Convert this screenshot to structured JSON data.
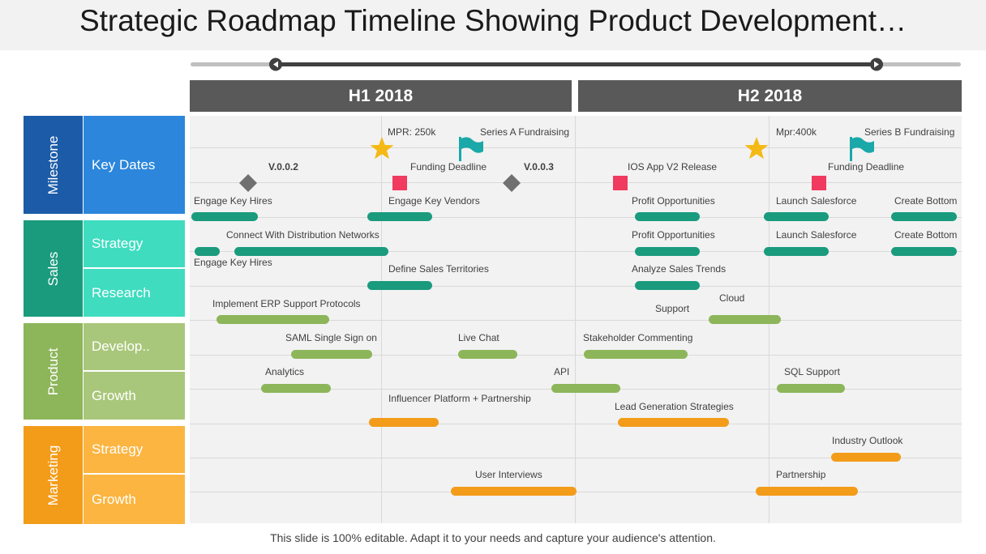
{
  "title": "Strategic Roadmap Timeline Showing Product Development…",
  "footer": "This slide is 100% editable. Adapt it to your needs and capture your audience's attention.",
  "halves": [
    "H1 2018",
    "H2 2018"
  ],
  "categories": [
    {
      "label": "Milestone",
      "color": "#1b5ba8",
      "subs": [
        {
          "label": "Key Dates",
          "color": "#2b86dc"
        }
      ]
    },
    {
      "label": "Sales",
      "color": "#1a9b7d",
      "subs": [
        {
          "label": "Strategy",
          "color": "#3fdcc0"
        },
        {
          "label": "Research",
          "color": "#3fdcc0"
        }
      ]
    },
    {
      "label": "Product",
      "color": "#8db55a",
      "subs": [
        {
          "label": "Develop..",
          "color": "#a9c77a"
        },
        {
          "label": "Growth",
          "color": "#a9c77a"
        }
      ]
    },
    {
      "label": "Marketing",
      "color": "#f39c1a",
      "subs": [
        {
          "label": "Strategy",
          "color": "#fbb540"
        },
        {
          "label": "Growth",
          "color": "#fbb540"
        }
      ]
    }
  ],
  "milestones": {
    "mpr_h1": "MPR: 250k",
    "series_a": "Series A Fundraising",
    "v002": "V.0.0.2",
    "funding_h1": "Funding Deadline",
    "v003": "V.0.0.3",
    "ios_release": "IOS App V2 Release",
    "mpr_h2": "Mpr:400k",
    "series_b": "Series B Fundraising",
    "funding_h2": "Funding Deadline"
  },
  "tasks": {
    "engage_key_hires_1": "Engage Key Hires",
    "engage_key_vendors": "Engage Key Vendors",
    "profit_opp_1": "Profit Opportunities",
    "launch_salesforce_1": "Launch Salesforce",
    "create_bottom_1": "Create Bottom",
    "connect_networks": "Connect With Distribution Networks",
    "profit_opp_2": "Profit Opportunities",
    "launch_salesforce_2": "Launch Salesforce",
    "create_bottom_2": "Create Bottom",
    "engage_key_hires_2": "Engage Key Hires",
    "define_territories": "Define Sales Territories",
    "analyze_trends": "Analyze  Sales Trends",
    "implement_erp": "Implement ERP Support Protocols",
    "support": "Support",
    "cloud": "Cloud",
    "saml": "SAML  Single Sign on",
    "live_chat": "Live Chat",
    "stakeholder": "Stakeholder Commenting",
    "analytics": "Analytics",
    "api": "API",
    "sql_support": "SQL Support",
    "influencer": "Influencer Platform + Partnership",
    "lead_gen": "Lead Generation Strategies",
    "industry_outlook": "Industry Outlook",
    "user_interviews": "User Interviews",
    "partnership": "Partnership"
  },
  "colors": {
    "header": "#595959",
    "grid_bg": "#f2f2f2",
    "teal_bar": "#1a9b7d",
    "green_bar": "#8db55a",
    "orange_bar": "#f39c1a",
    "star": "#f5b915",
    "flag": "#1aa8a8",
    "diamond": "#707070",
    "square": "#f03a5f"
  },
  "icons": [
    "star-icon",
    "flag-icon",
    "diamond-icon",
    "square-icon",
    "slider-handle-left-icon",
    "slider-handle-right-icon"
  ]
}
